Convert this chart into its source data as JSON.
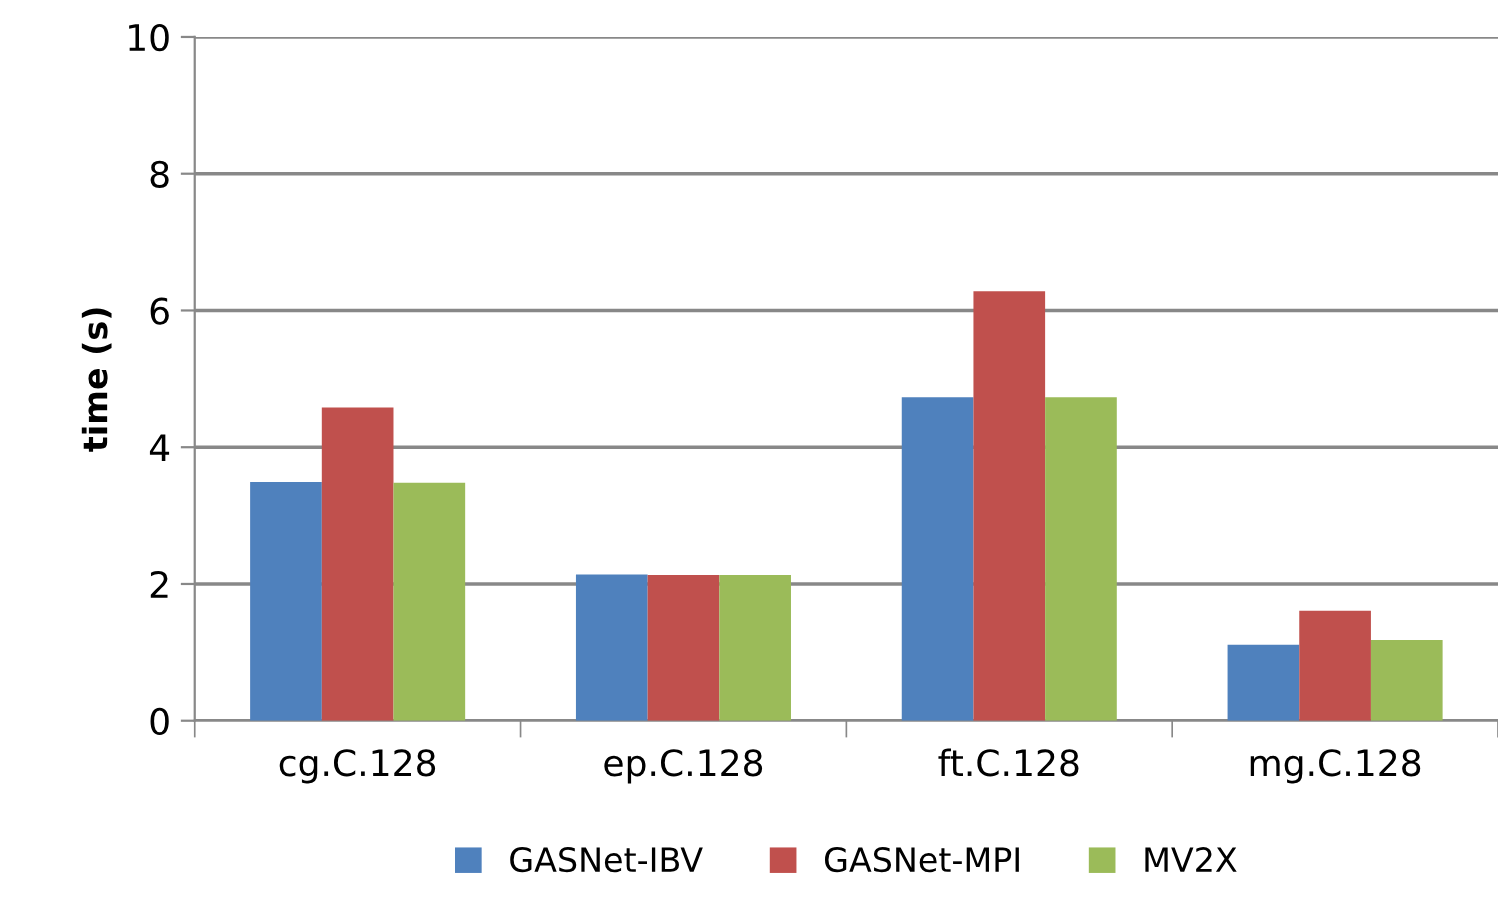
{
  "chart_data": {
    "type": "bar",
    "ylabel": "time (s)",
    "categories": [
      "cg.C.128",
      "ep.C.128",
      "ft.C.128",
      "mg.C.128"
    ],
    "series": [
      {
        "name": "GASNet-IBV",
        "color": "#4f81bd",
        "values": [
          3.49,
          2.14,
          4.73,
          1.11
        ]
      },
      {
        "name": "GASNet-MPI",
        "color": "#c0504d",
        "values": [
          4.58,
          2.13,
          6.28,
          1.61
        ]
      },
      {
        "name": "MV2X",
        "color": "#9bbb59",
        "values": [
          3.48,
          2.13,
          4.73,
          1.18
        ]
      }
    ],
    "ylim": [
      0,
      10
    ],
    "yticks": [
      0,
      2,
      4,
      6,
      8,
      10
    ],
    "grid": "y",
    "legend": "bottom"
  }
}
